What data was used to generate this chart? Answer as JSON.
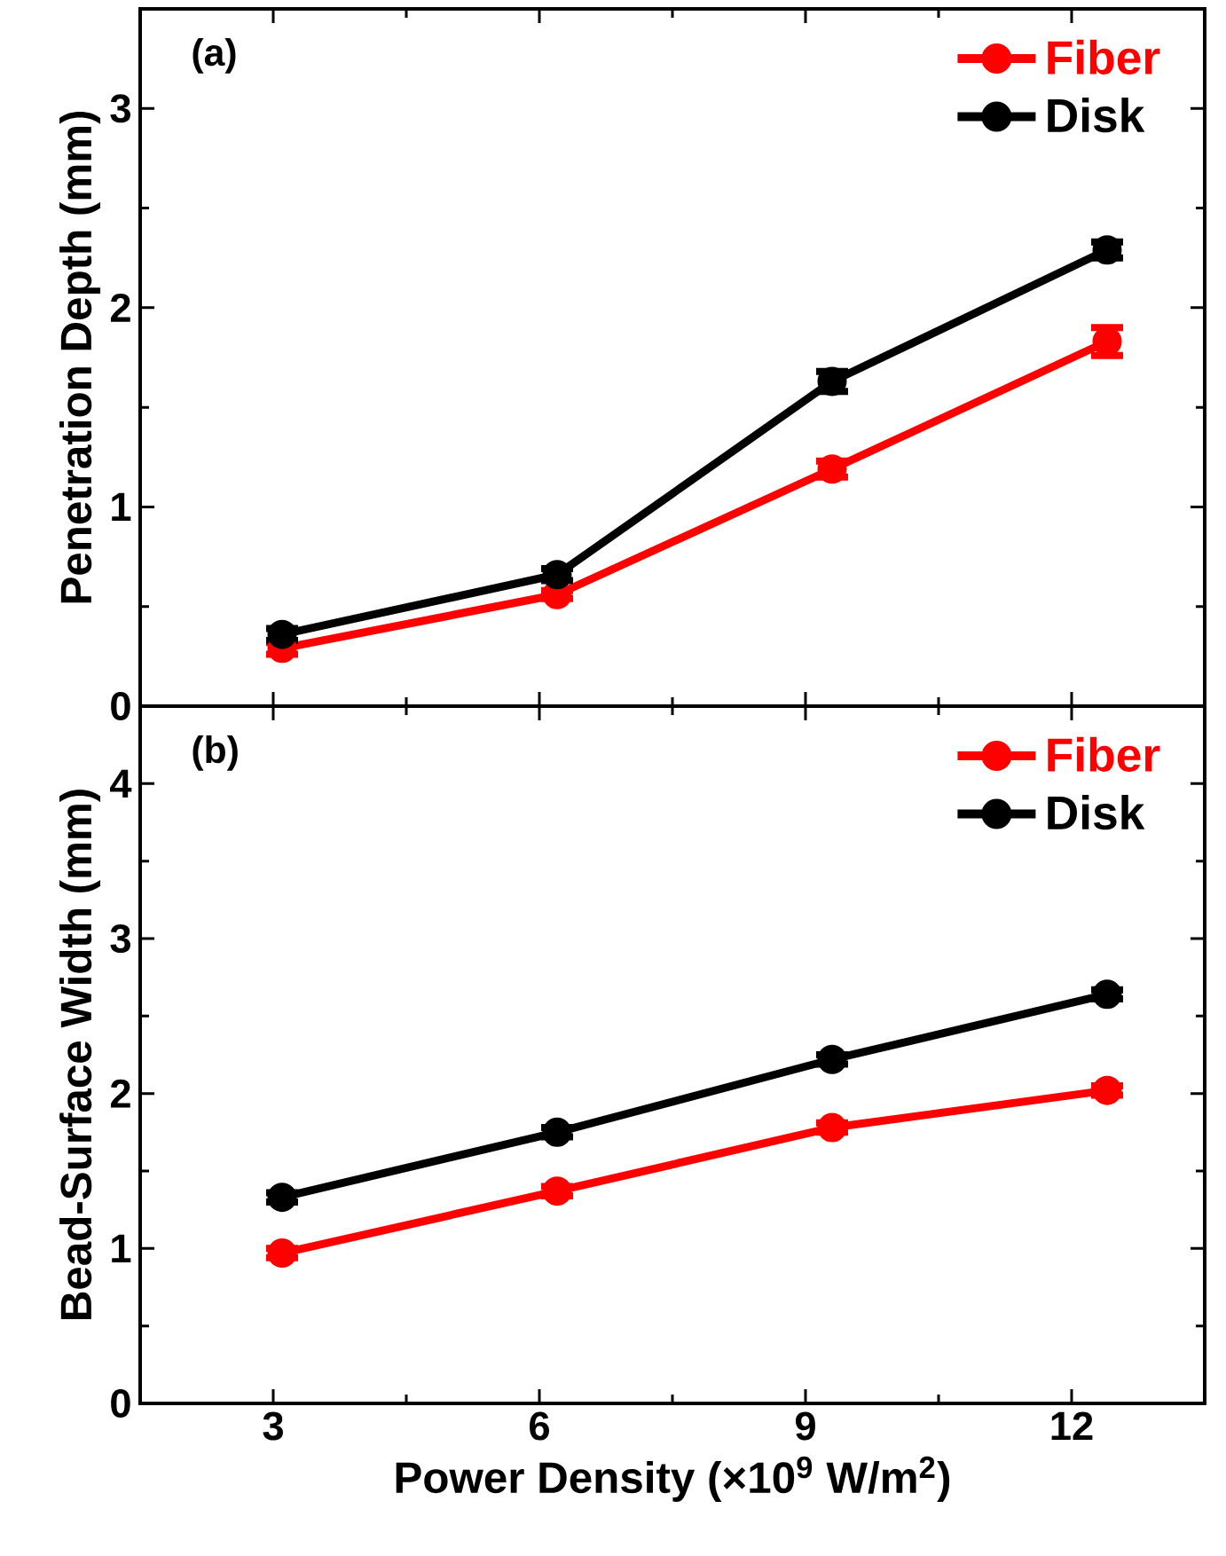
{
  "chart_data": [
    {
      "type": "line",
      "ylabel": "Penetration Depth (mm)",
      "annotations": [
        "(a)"
      ],
      "x": [
        3.1,
        6.2,
        9.3,
        12.4
      ],
      "xlim": [
        1.5,
        13.5
      ],
      "xticks": [
        3,
        6,
        9,
        12
      ],
      "ylim": [
        0,
        3.5
      ],
      "yticks": [
        0,
        1,
        2,
        3
      ],
      "tick_labels": "y",
      "legend": "top right",
      "marker": "circle",
      "line_style": "solid",
      "series": [
        {
          "name": "Fiber",
          "color": "#ff0000",
          "values": [
            0.29,
            0.56,
            1.19,
            1.83
          ],
          "errors": [
            0.03,
            0.02,
            0.04,
            0.07
          ]
        },
        {
          "name": "Disk",
          "color": "#000000",
          "values": [
            0.36,
            0.66,
            1.63,
            2.29
          ],
          "errors": [
            0.03,
            0.03,
            0.05,
            0.04
          ]
        }
      ]
    },
    {
      "type": "line",
      "xlabel": "Power Density (×10$^{9}$ W/m$^{2}$)",
      "ylabel": "Bead-Surface Width (mm)",
      "annotations": [
        "(b)"
      ],
      "x": [
        3.1,
        6.2,
        9.3,
        12.4
      ],
      "xlim": [
        1.5,
        13.5
      ],
      "xticks": [
        3,
        6,
        9,
        12
      ],
      "ylim": [
        0,
        4.5
      ],
      "yticks": [
        0,
        1,
        2,
        3,
        4
      ],
      "legend": "top right",
      "marker": "circle",
      "line_style": "solid",
      "series": [
        {
          "name": "Fiber",
          "color": "#ff0000",
          "values": [
            0.97,
            1.37,
            1.78,
            2.02
          ],
          "errors": [
            0.03,
            0.03,
            0.03,
            0.03
          ]
        },
        {
          "name": "Disk",
          "color": "#000000",
          "values": [
            1.33,
            1.75,
            2.22,
            2.64
          ],
          "errors": [
            0.03,
            0.03,
            0.03,
            0.03
          ]
        }
      ]
    }
  ]
}
